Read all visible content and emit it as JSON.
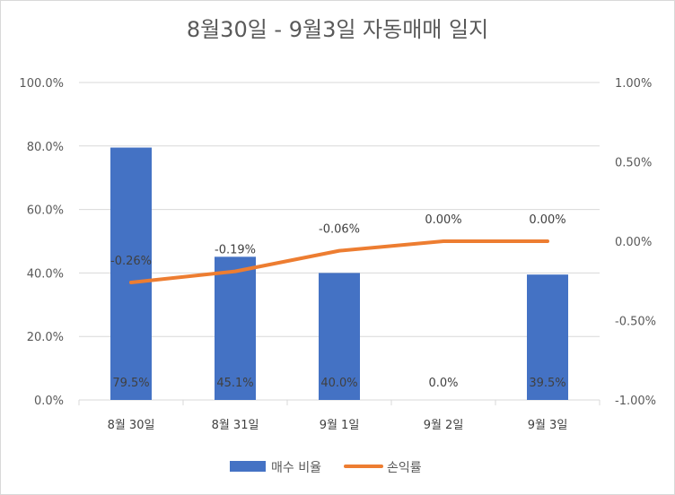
{
  "chart_data": {
    "type": "bar",
    "title": "8월30일 - 9월3일 자동매매 일지",
    "categories": [
      "8월 30일",
      "8월 31일",
      "9월 1일",
      "9월 2일",
      "9월 3일"
    ],
    "series": [
      {
        "name": "매수 비율",
        "type": "bar",
        "axis": "left",
        "color": "#4472C4",
        "values": [
          79.5,
          45.1,
          40.0,
          0.0,
          39.5
        ],
        "labels": [
          "79.5%",
          "45.1%",
          "40.0%",
          "0.0%",
          "39.5%"
        ]
      },
      {
        "name": "손익률",
        "type": "line",
        "axis": "right",
        "color": "#ED7D31",
        "values": [
          -0.26,
          -0.19,
          -0.06,
          0.0,
          0.0
        ],
        "labels": [
          "-0.26%",
          "-0.19%",
          "-0.06%",
          "0.00%",
          "0.00%"
        ]
      }
    ],
    "y_left": {
      "min": 0,
      "max": 100,
      "ticks": [
        0,
        20,
        40,
        60,
        80,
        100
      ],
      "tick_labels": [
        "0.0%",
        "20.0%",
        "40.0%",
        "60.0%",
        "80.0%",
        "100.0%"
      ]
    },
    "y_right": {
      "min": -1.0,
      "max": 1.0,
      "ticks": [
        -1.0,
        -0.5,
        0.0,
        0.5,
        1.0
      ],
      "tick_labels": [
        "-1.00%",
        "-0.50%",
        "0.00%",
        "0.50%",
        "1.00%"
      ]
    },
    "grid": true,
    "legend": "bottom"
  }
}
